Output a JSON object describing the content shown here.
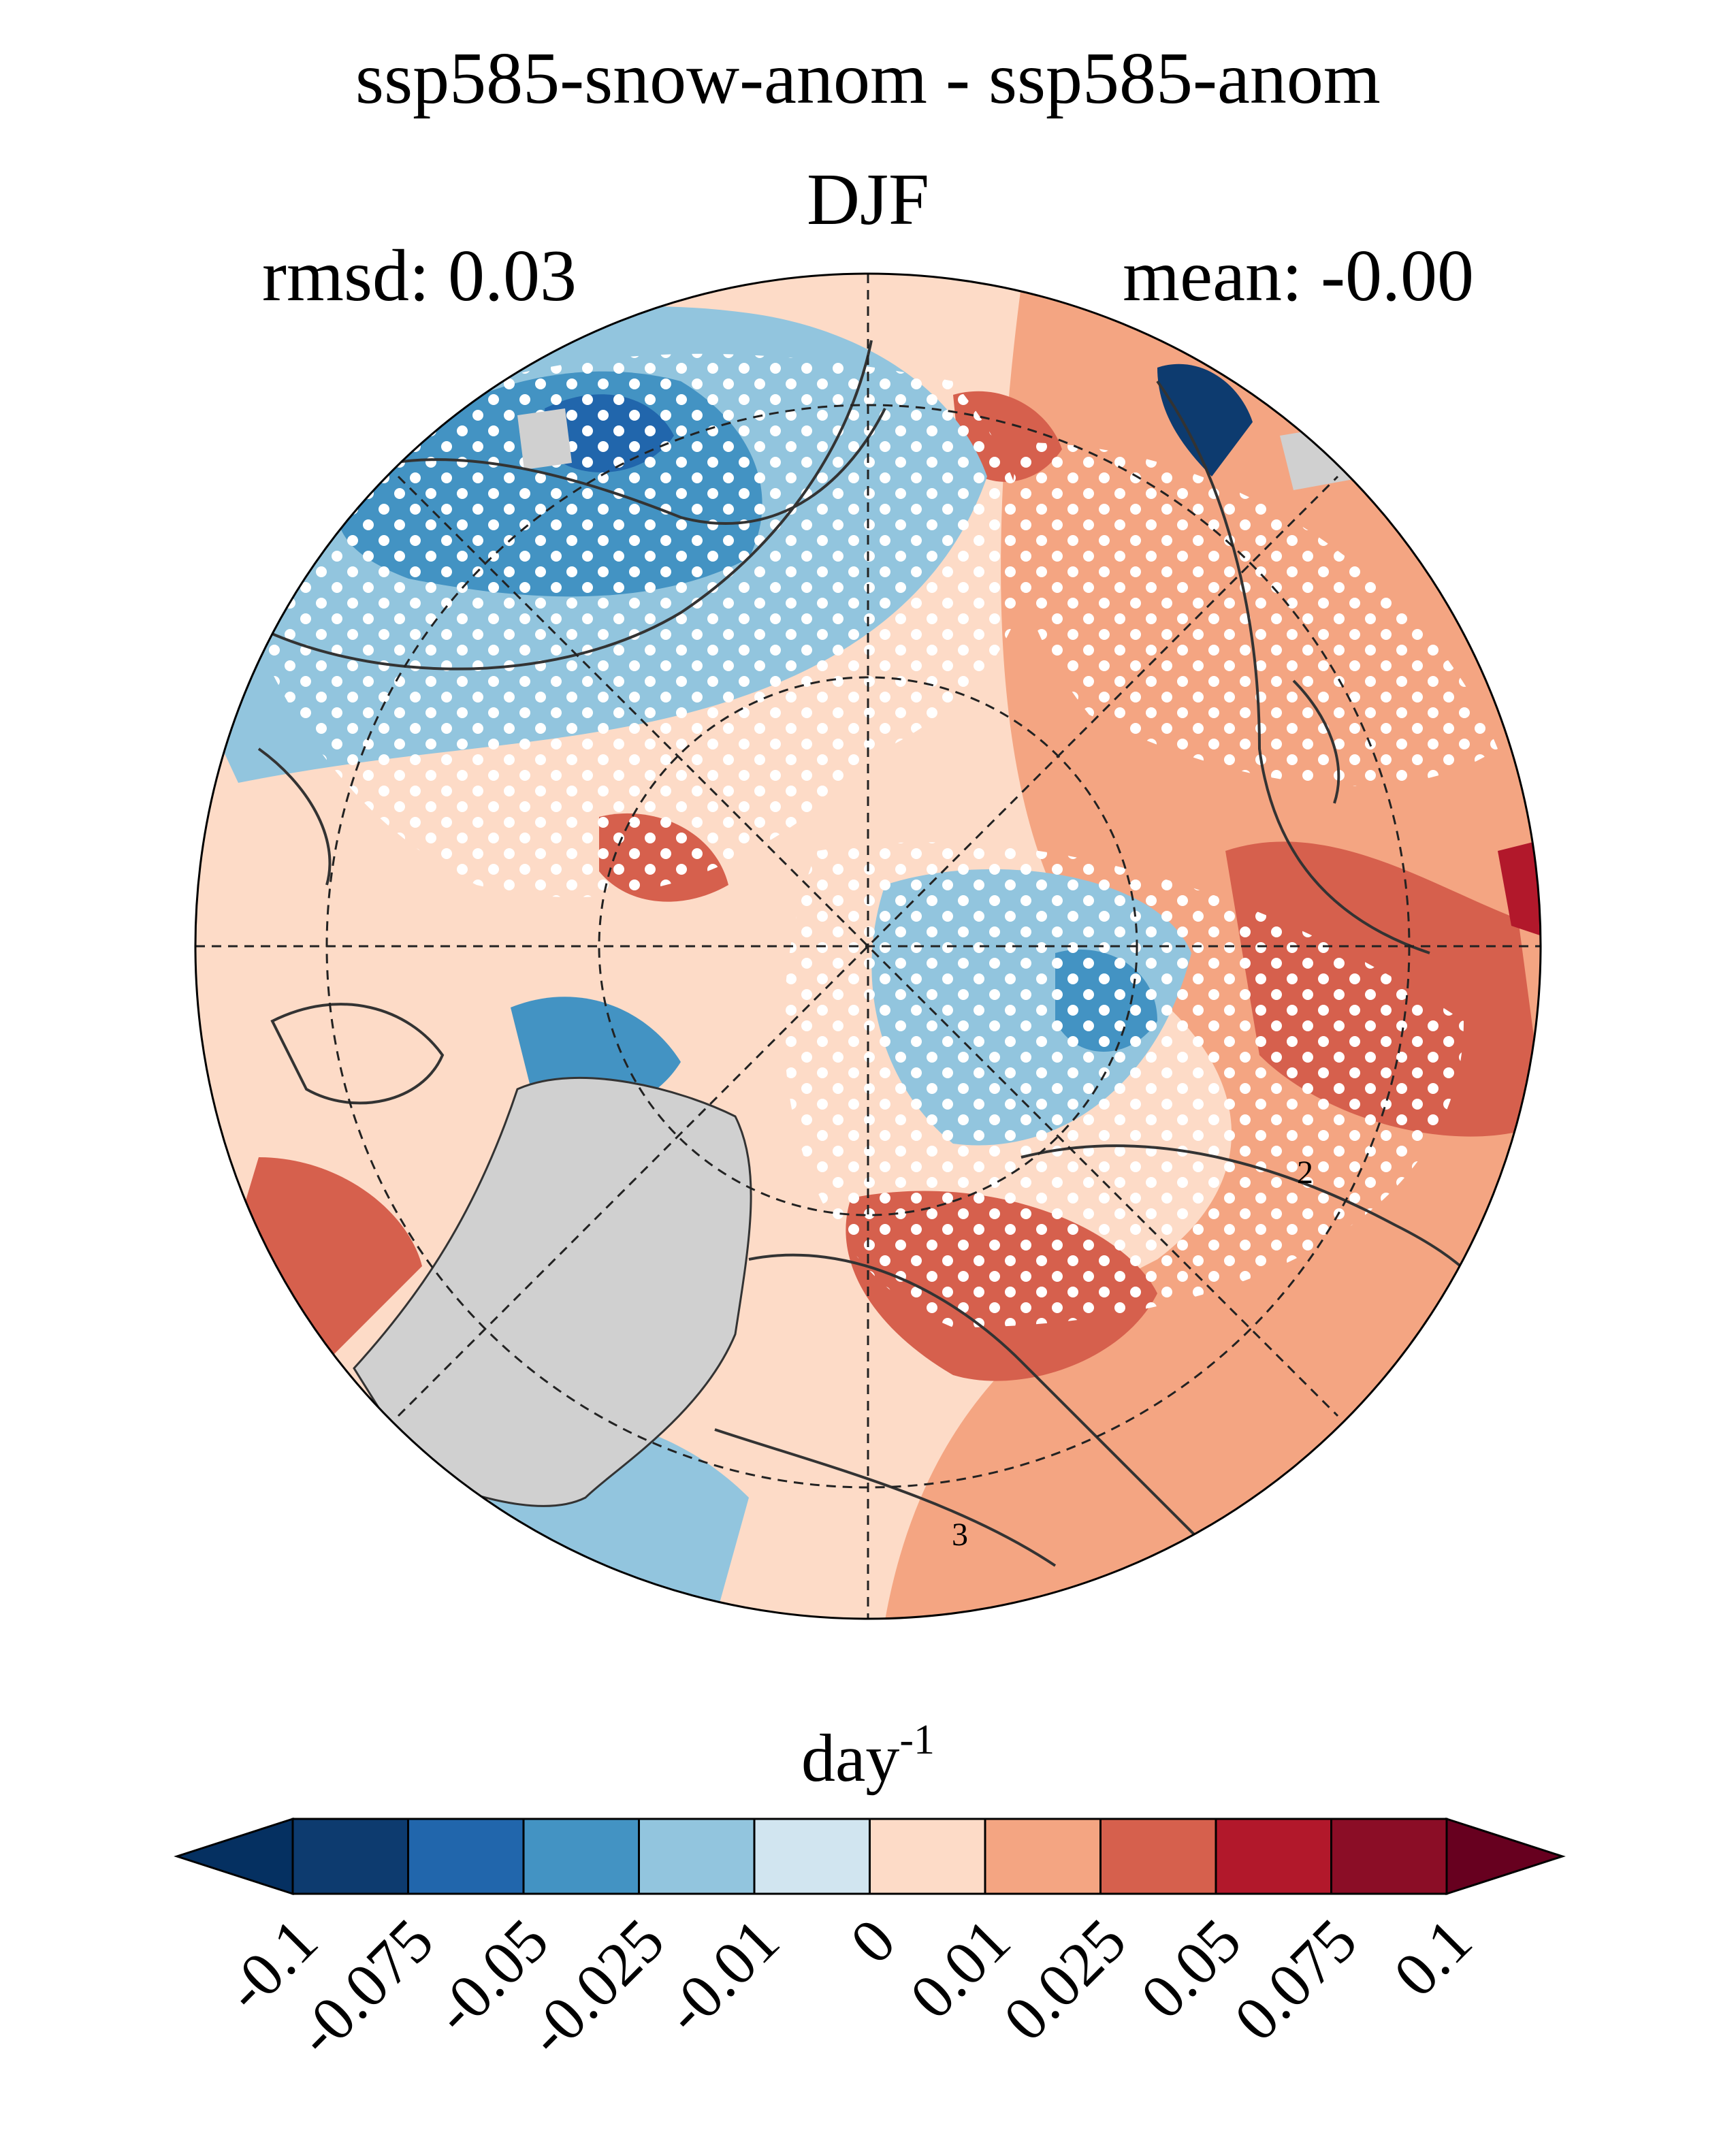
{
  "header": {
    "title": "ssp585-snow-anom - ssp585-anom",
    "season": "DJF",
    "rmsd": "rmsd: 0.03",
    "mean": "mean: -0.00"
  },
  "map": {
    "projection": "north-polar-stereographic",
    "stippling": "white dots mark significant areas",
    "masked_color": "#d0d0d0",
    "contour_labels": [
      "2",
      "3"
    ]
  },
  "colorbar": {
    "unit_base": "day",
    "unit_exp": "-1",
    "ticks": [
      "-0.1",
      "-0.075",
      "-0.05",
      "-0.025",
      "-0.01",
      "0",
      "0.01",
      "0.025",
      "0.05",
      "0.075",
      "0.1"
    ],
    "colors": [
      "#053061",
      "#0d3b6f",
      "#2166ac",
      "#4393c3",
      "#92c5de",
      "#d1e5f0",
      "#fddbc7",
      "#f4a582",
      "#d6604d",
      "#b2182b",
      "#8b0d26",
      "#67001f"
    ]
  }
}
